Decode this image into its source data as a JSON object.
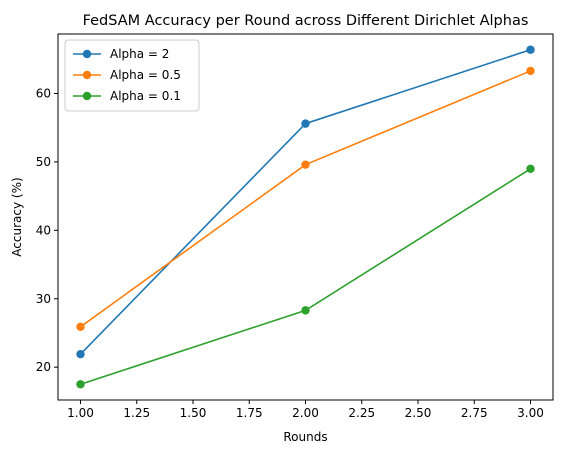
{
  "chart_data": {
    "type": "line",
    "title": "FedSAM Accuracy per Round across Different Dirichlet Alphas",
    "xlabel": "Rounds",
    "ylabel": "Accuracy (%)",
    "xlim": [
      0.9,
      3.1
    ],
    "ylim": [
      15.2,
      68.7
    ],
    "xticks": [
      1.0,
      1.25,
      1.5,
      1.75,
      2.0,
      2.25,
      2.5,
      2.75,
      3.0
    ],
    "xtick_labels": [
      "1.00",
      "1.25",
      "1.50",
      "1.75",
      "2.00",
      "2.25",
      "2.50",
      "2.75",
      "3.00"
    ],
    "yticks": [
      20,
      30,
      40,
      50,
      60
    ],
    "ytick_labels": [
      "20",
      "30",
      "40",
      "50",
      "60"
    ],
    "grid": false,
    "legend_position": "top-left",
    "x": [
      1,
      2,
      3
    ],
    "series": [
      {
        "name": "Alpha = 2",
        "values": [
          21.9,
          55.6,
          66.4
        ],
        "color": "#1f77b4"
      },
      {
        "name": "Alpha = 0.5",
        "values": [
          25.9,
          49.6,
          63.3
        ],
        "color": "#ff7f0e"
      },
      {
        "name": "Alpha = 0.1",
        "values": [
          17.5,
          28.3,
          49.0
        ],
        "color": "#2ca02c"
      }
    ]
  }
}
